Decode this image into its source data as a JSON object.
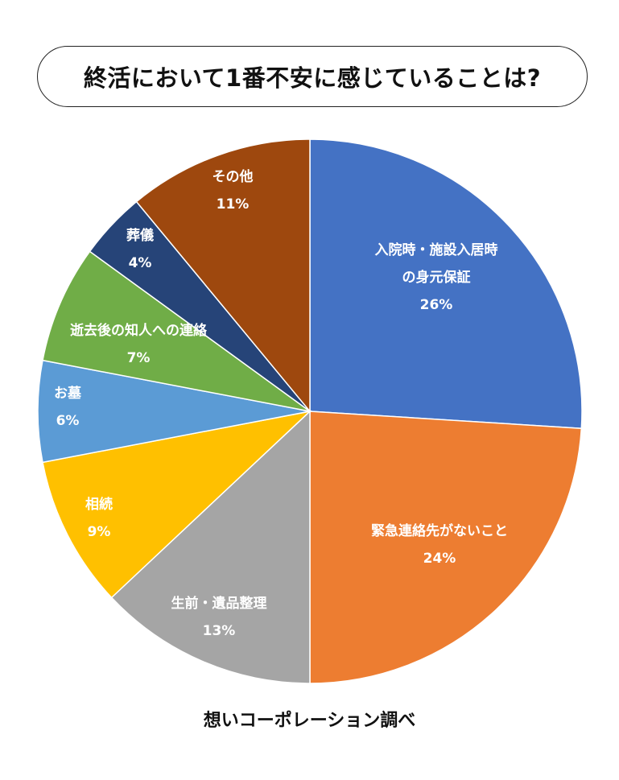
{
  "title": "終活において1番不安に感じていることは?",
  "source": "想いコーポレーション調べ",
  "chart_data": {
    "type": "pie",
    "title": "終活において1番不安に感じていることは?",
    "start": "12 o'clock",
    "direction": "clockwise",
    "slices": [
      {
        "label_lines": [
          "入院時・施設入居時",
          "の身元保証"
        ],
        "value": 26,
        "value_label": "26%",
        "color": "#4472C4"
      },
      {
        "label_lines": [
          "緊急連絡先がないこと"
        ],
        "value": 24,
        "value_label": "24%",
        "color": "#ED7D31"
      },
      {
        "label_lines": [
          "生前・遺品整理"
        ],
        "value": 13,
        "value_label": "13%",
        "color": "#A5A5A5"
      },
      {
        "label_lines": [
          "相続"
        ],
        "value": 9,
        "value_label": "9%",
        "color": "#FFC000"
      },
      {
        "label_lines": [
          "お墓"
        ],
        "value": 6,
        "value_label": "6%",
        "color": "#5B9BD5"
      },
      {
        "label_lines": [
          "逝去後の知人への連絡"
        ],
        "value": 7,
        "value_label": "7%",
        "color": "#70AD47"
      },
      {
        "label_lines": [
          "葬儀"
        ],
        "value": 4,
        "value_label": "4%",
        "color": "#264478"
      },
      {
        "label_lines": [
          "その他"
        ],
        "value": 11,
        "value_label": "11%",
        "color": "#9E480E"
      }
    ]
  }
}
